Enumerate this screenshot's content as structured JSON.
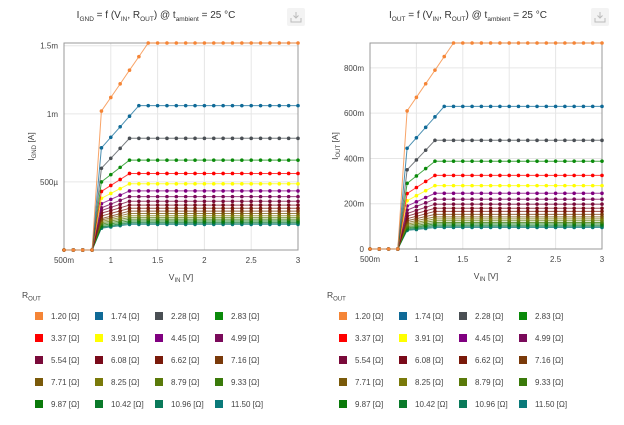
{
  "charts": [
    {
      "title_main": "I",
      "title_main_sub": "GND",
      "title_rest1": " = f (V",
      "title_sub2": "IN",
      "title_rest2": ", R",
      "title_sub3": "OUT",
      "title_rest3": ") @ t",
      "title_sub4": "ambient",
      "title_rest4": " = 25 °C",
      "download_icon": "download-icon",
      "legend_title": "R",
      "legend_title_sub": "OUT"
    },
    {
      "title_main": "I",
      "title_main_sub": "OUT",
      "title_rest1": " = f (V",
      "title_sub2": "IN",
      "title_rest2": ", R",
      "title_sub3": "OUT",
      "title_rest3": ") @ t",
      "title_sub4": "ambient",
      "title_rest4": " = 25 °C",
      "download_icon": "download-icon",
      "legend_title": "R",
      "legend_title_sub": "OUT"
    }
  ],
  "legend": [
    {
      "label": "1.20 [Ω]",
      "color": "#f58536"
    },
    {
      "label": "1.74 [Ω]",
      "color": "#0f6a97"
    },
    {
      "label": "2.28 [Ω]",
      "color": "#4a4f54"
    },
    {
      "label": "2.83 [Ω]",
      "color": "#0a8a0a"
    },
    {
      "label": "3.37 [Ω]",
      "color": "#ff0000"
    },
    {
      "label": "3.91 [Ω]",
      "color": "#ffff00"
    },
    {
      "label": "4.45 [Ω]",
      "color": "#800080"
    },
    {
      "label": "4.99 [Ω]",
      "color": "#7a0a5a"
    },
    {
      "label": "5.54 [Ω]",
      "color": "#7a0a3a"
    },
    {
      "label": "6.08 [Ω]",
      "color": "#7a0a1a"
    },
    {
      "label": "6.62 [Ω]",
      "color": "#7a1a0a"
    },
    {
      "label": "7.16 [Ω]",
      "color": "#7a3a0a"
    },
    {
      "label": "7.71 [Ω]",
      "color": "#7a5a0a"
    },
    {
      "label": "8.25 [Ω]",
      "color": "#7a7a0a"
    },
    {
      "label": "8.79 [Ω]",
      "color": "#5a7a0a"
    },
    {
      "label": "9.33 [Ω]",
      "color": "#3a7a0a"
    },
    {
      "label": "9.87 [Ω]",
      "color": "#0a7a0a"
    },
    {
      "label": "10.42 [Ω]",
      "color": "#0a7a2a"
    },
    {
      "label": "10.96 [Ω]",
      "color": "#0a7a5a"
    },
    {
      "label": "11.50 [Ω]",
      "color": "#0a7a7a"
    }
  ],
  "chart_data": [
    {
      "type": "line",
      "title": "IGND = f (VIN, ROUT) @ tambient = 25 °C",
      "xlabel": "VIN [V]",
      "ylabel": "IGND [A]",
      "xlim": [
        0.5,
        3.0
      ],
      "ylim": [
        0,
        0.00152
      ],
      "xticks": [
        {
          "v": 0.5,
          "label": "500m"
        },
        {
          "v": 1,
          "label": "1"
        },
        {
          "v": 1.5,
          "label": "1.5"
        },
        {
          "v": 2,
          "label": "2"
        },
        {
          "v": 2.5,
          "label": "2.5"
        },
        {
          "v": 3,
          "label": "3"
        }
      ],
      "yticks": [
        {
          "v": 0.0005,
          "label": "500µ"
        },
        {
          "v": 0.001,
          "label": "1m"
        },
        {
          "v": 0.0015,
          "label": "1.5m"
        }
      ],
      "grid": true,
      "legend_position": "bottom",
      "x": [
        0.5,
        0.6,
        0.7,
        0.8,
        0.9,
        1.0,
        1.1,
        1.2,
        1.3,
        1.4,
        1.5,
        1.6,
        1.7,
        1.8,
        1.9,
        2.0,
        2.1,
        2.2,
        2.3,
        2.4,
        2.5,
        2.6,
        2.7,
        2.8,
        2.9,
        3.0
      ],
      "series_sat": [
        0.00152,
        0.00106,
        0.00082,
        0.00066,
        0.000562,
        0.000486,
        0.000434,
        0.000392,
        0.000358,
        0.00033,
        0.000306,
        0.000286,
        0.000268,
        0.000252,
        0.000238,
        0.000226,
        0.000214,
        0.000204,
        0.000196,
        0.000188
      ],
      "series_first": [
        0.00102,
        0.00075,
        0.0006,
        0.0005,
        0.00043,
        0.00038,
        0.00034,
        0.00031,
        0.00029,
        0.00027,
        0.00025,
        0.00023,
        0.00022,
        0.00021,
        0.0002,
        0.00019,
        0.00018,
        0.00017,
        0.000165,
        0.00016
      ],
      "series_names": [
        "1.20 [Ω]",
        "1.74 [Ω]",
        "2.28 [Ω]",
        "2.83 [Ω]",
        "3.37 [Ω]",
        "3.91 [Ω]",
        "4.45 [Ω]",
        "4.99 [Ω]",
        "5.54 [Ω]",
        "6.08 [Ω]",
        "6.62 [Ω]",
        "7.16 [Ω]",
        "7.71 [Ω]",
        "8.25 [Ω]",
        "8.79 [Ω]",
        "9.33 [Ω]",
        "9.87 [Ω]",
        "10.42 [Ω]",
        "10.96 [Ω]",
        "11.50 [Ω]"
      ],
      "ramp_end_v": 0.8
    },
    {
      "type": "line",
      "title": "IOUT = f (VIN, ROUT) @ tambient = 25 °C",
      "xlabel": "VIN [V]",
      "ylabel": "IOUT [A]",
      "xlim": [
        0.5,
        3.0
      ],
      "ylim": [
        0,
        0.91
      ],
      "xticks": [
        {
          "v": 0.5,
          "label": "500m"
        },
        {
          "v": 1,
          "label": "1"
        },
        {
          "v": 1.5,
          "label": "1.5"
        },
        {
          "v": 2,
          "label": "2"
        },
        {
          "v": 2.5,
          "label": "2.5"
        },
        {
          "v": 3,
          "label": "3"
        }
      ],
      "yticks": [
        {
          "v": 0,
          "label": "0"
        },
        {
          "v": 0.2,
          "label": "200m"
        },
        {
          "v": 0.4,
          "label": "400m"
        },
        {
          "v": 0.6,
          "label": "600m"
        },
        {
          "v": 0.8,
          "label": "800m"
        }
      ],
      "grid": true,
      "legend_position": "bottom",
      "x": [
        0.5,
        0.6,
        0.7,
        0.8,
        0.9,
        1.0,
        1.1,
        1.2,
        1.3,
        1.4,
        1.5,
        1.6,
        1.7,
        1.8,
        1.9,
        2.0,
        2.1,
        2.2,
        2.3,
        2.4,
        2.5,
        2.6,
        2.7,
        2.8,
        2.9,
        3.0
      ],
      "series_sat": [
        0.91,
        0.63,
        0.48,
        0.388,
        0.325,
        0.28,
        0.246,
        0.22,
        0.198,
        0.18,
        0.166,
        0.153,
        0.142,
        0.133,
        0.125,
        0.117,
        0.111,
        0.105,
        0.1,
        0.095
      ],
      "series_first": [
        0.61,
        0.445,
        0.35,
        0.29,
        0.245,
        0.213,
        0.19,
        0.172,
        0.157,
        0.145,
        0.134,
        0.125,
        0.117,
        0.11,
        0.104,
        0.098,
        0.093,
        0.089,
        0.085,
        0.082
      ],
      "series_names": [
        "1.20 [Ω]",
        "1.74 [Ω]",
        "2.28 [Ω]",
        "2.83 [Ω]",
        "3.37 [Ω]",
        "3.91 [Ω]",
        "4.45 [Ω]",
        "4.99 [Ω]",
        "5.54 [Ω]",
        "6.08 [Ω]",
        "6.62 [Ω]",
        "7.16 [Ω]",
        "7.71 [Ω]",
        "8.25 [Ω]",
        "8.79 [Ω]",
        "9.33 [Ω]",
        "9.87 [Ω]",
        "10.42 [Ω]",
        "10.96 [Ω]",
        "11.50 [Ω]"
      ],
      "ramp_end_v": 0.8
    }
  ]
}
